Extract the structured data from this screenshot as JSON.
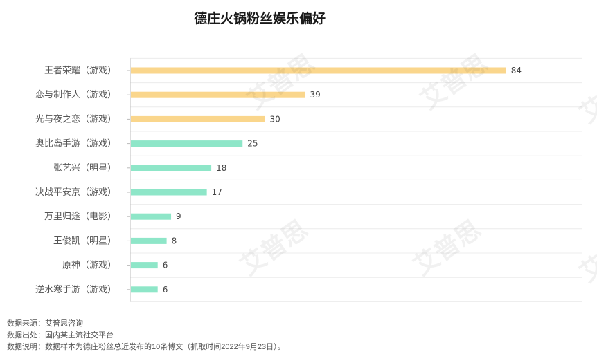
{
  "chart_data": {
    "type": "bar",
    "orientation": "horizontal",
    "title": "德庄火锅粉丝娱乐偏好",
    "categories": [
      "王者荣耀（游戏）",
      "恋与制作人（游戏）",
      "光与夜之恋（游戏）",
      "奥比岛手游（游戏）",
      "张艺兴（明星）",
      "决战平安京（游戏）",
      "万里归途（电影）",
      "王俊凯（明星）",
      "原神（游戏）",
      "逆水寒手游（游戏）"
    ],
    "values": [
      84,
      39,
      30,
      25,
      18,
      17,
      9,
      8,
      6,
      6
    ],
    "bar_colors": [
      "#fad68c",
      "#fad68c",
      "#fad68c",
      "#8ee6c8",
      "#8ee6c8",
      "#8ee6c8",
      "#8ee6c8",
      "#8ee6c8",
      "#8ee6c8",
      "#8ee6c8"
    ],
    "xlim": [
      0,
      100
    ],
    "grid": false,
    "data_labels": true
  },
  "footnotes": {
    "source": "数据来源：艾普思咨询",
    "origin": "数据出处：国内某主流社交平台",
    "note": "数据说明：数据样本为德庄粉丝总近发布的10条博文（抓取时间2022年9月23日）。"
  },
  "watermark": "艾普思"
}
